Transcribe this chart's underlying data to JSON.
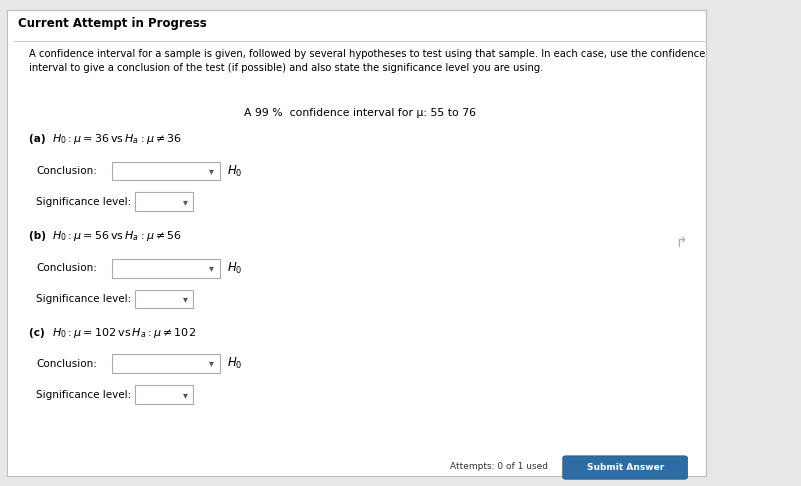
{
  "bg_color": "#e8e8e8",
  "panel_color": "#ffffff",
  "header_text": "Current Attempt in Progress",
  "description": "A confidence interval for a sample is given, followed by several hypotheses to test using that sample. In each case, use the confidence\ninterval to give a conclusion of the test (if possible) and also state the significance level you are using.",
  "ci_text": "A 99 %  confidence interval for μ: 55 to 76",
  "parts": [
    {
      "label": "(a)",
      "hyp_val": "36",
      "conclusion_label": "Conclusion:",
      "significance_label": "Significance level:"
    },
    {
      "label": "(b)",
      "hyp_val": "56",
      "conclusion_label": "Conclusion:",
      "significance_label": "Significance level:"
    },
    {
      "label": "(c)",
      "hyp_val": "102",
      "conclusion_label": "Conclusion:",
      "significance_label": "Significance level:"
    }
  ],
  "submit_button_color": "#2e6da4",
  "submit_button_text": "Submit Answer",
  "attempts_text": "Attempts: 0 of 1 used"
}
